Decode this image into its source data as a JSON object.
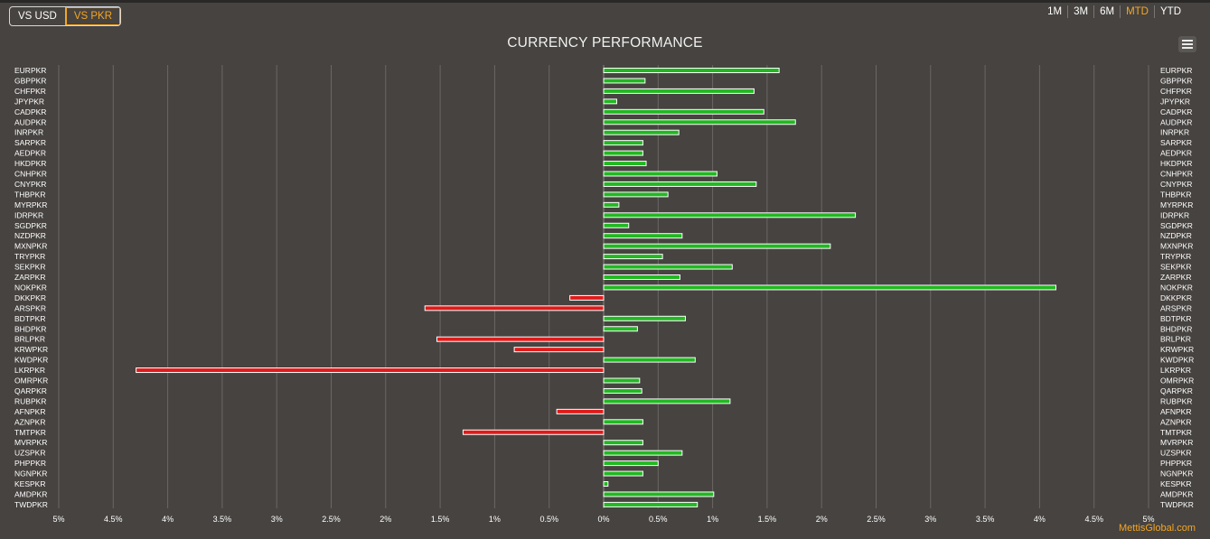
{
  "toggle": {
    "usd_label": "VS USD",
    "pkr_label": "VS PKR",
    "active": "pkr"
  },
  "ranges": [
    {
      "label": "1M",
      "active": false
    },
    {
      "label": "3M",
      "active": false
    },
    {
      "label": "6M",
      "active": false
    },
    {
      "label": "MTD",
      "active": true
    },
    {
      "label": "YTD",
      "active": false
    }
  ],
  "credit": "MettisGlobal.com",
  "chart_data": {
    "type": "bar",
    "orientation": "horizontal",
    "title": "CURRENCY PERFORMANCE",
    "xlim": [
      -5,
      5
    ],
    "x_ticks": [
      -5,
      -4.5,
      -4,
      -3.5,
      -3,
      -2.5,
      -2,
      -1.5,
      -1,
      -0.5,
      0,
      0.5,
      1,
      1.5,
      2,
      2.5,
      3,
      3.5,
      4,
      4.5,
      5
    ],
    "x_tick_labels": [
      "5%",
      "4.5%",
      "4%",
      "3.5%",
      "3%",
      "2.5%",
      "2%",
      "1.5%",
      "1%",
      "0.5%",
      "0%",
      "0.5%",
      "1%",
      "1.5%",
      "2%",
      "2.5%",
      "3%",
      "3.5%",
      "4%",
      "4.5%",
      "5%"
    ],
    "grid": true,
    "positive_color": "#22b822",
    "negative_color": "#e01b1b",
    "categories": [
      "EURPKR",
      "GBPPKR",
      "CHFPKR",
      "JPYPKR",
      "CADPKR",
      "AUDPKR",
      "INRPKR",
      "SARPKR",
      "AEDPKR",
      "HKDPKR",
      "CNHPKR",
      "CNYPKR",
      "THBPKR",
      "MYRPKR",
      "IDRPKR",
      "SGDPKR",
      "NZDPKR",
      "MXNPKR",
      "TRYPKR",
      "SEKPKR",
      "ZARPKR",
      "NOKPKR",
      "DKKPKR",
      "ARSPKR",
      "BDTPKR",
      "BHDPKR",
      "BRLPKR",
      "KRWPKR",
      "KWDPKR",
      "LKRPKR",
      "OMRPKR",
      "QARPKR",
      "RUBPKR",
      "AFNPKR",
      "AZNPKR",
      "TMTPKR",
      "MVRPKR",
      "UZSPKR",
      "PHPPKR",
      "NGNPKR",
      "KESPKR",
      "AMDPKR",
      "TWDPKR"
    ],
    "values": [
      1.61,
      0.38,
      1.38,
      0.12,
      1.47,
      1.76,
      0.69,
      0.36,
      0.36,
      0.39,
      1.04,
      1.4,
      0.59,
      0.14,
      2.31,
      0.23,
      0.72,
      2.08,
      0.54,
      1.18,
      0.7,
      4.15,
      -0.31,
      -1.64,
      0.75,
      0.31,
      -1.53,
      -0.82,
      0.84,
      -4.29,
      0.33,
      0.35,
      1.16,
      -0.43,
      0.36,
      -1.29,
      0.36,
      0.72,
      0.5,
      0.36,
      0.04,
      1.01,
      0.86
    ]
  }
}
